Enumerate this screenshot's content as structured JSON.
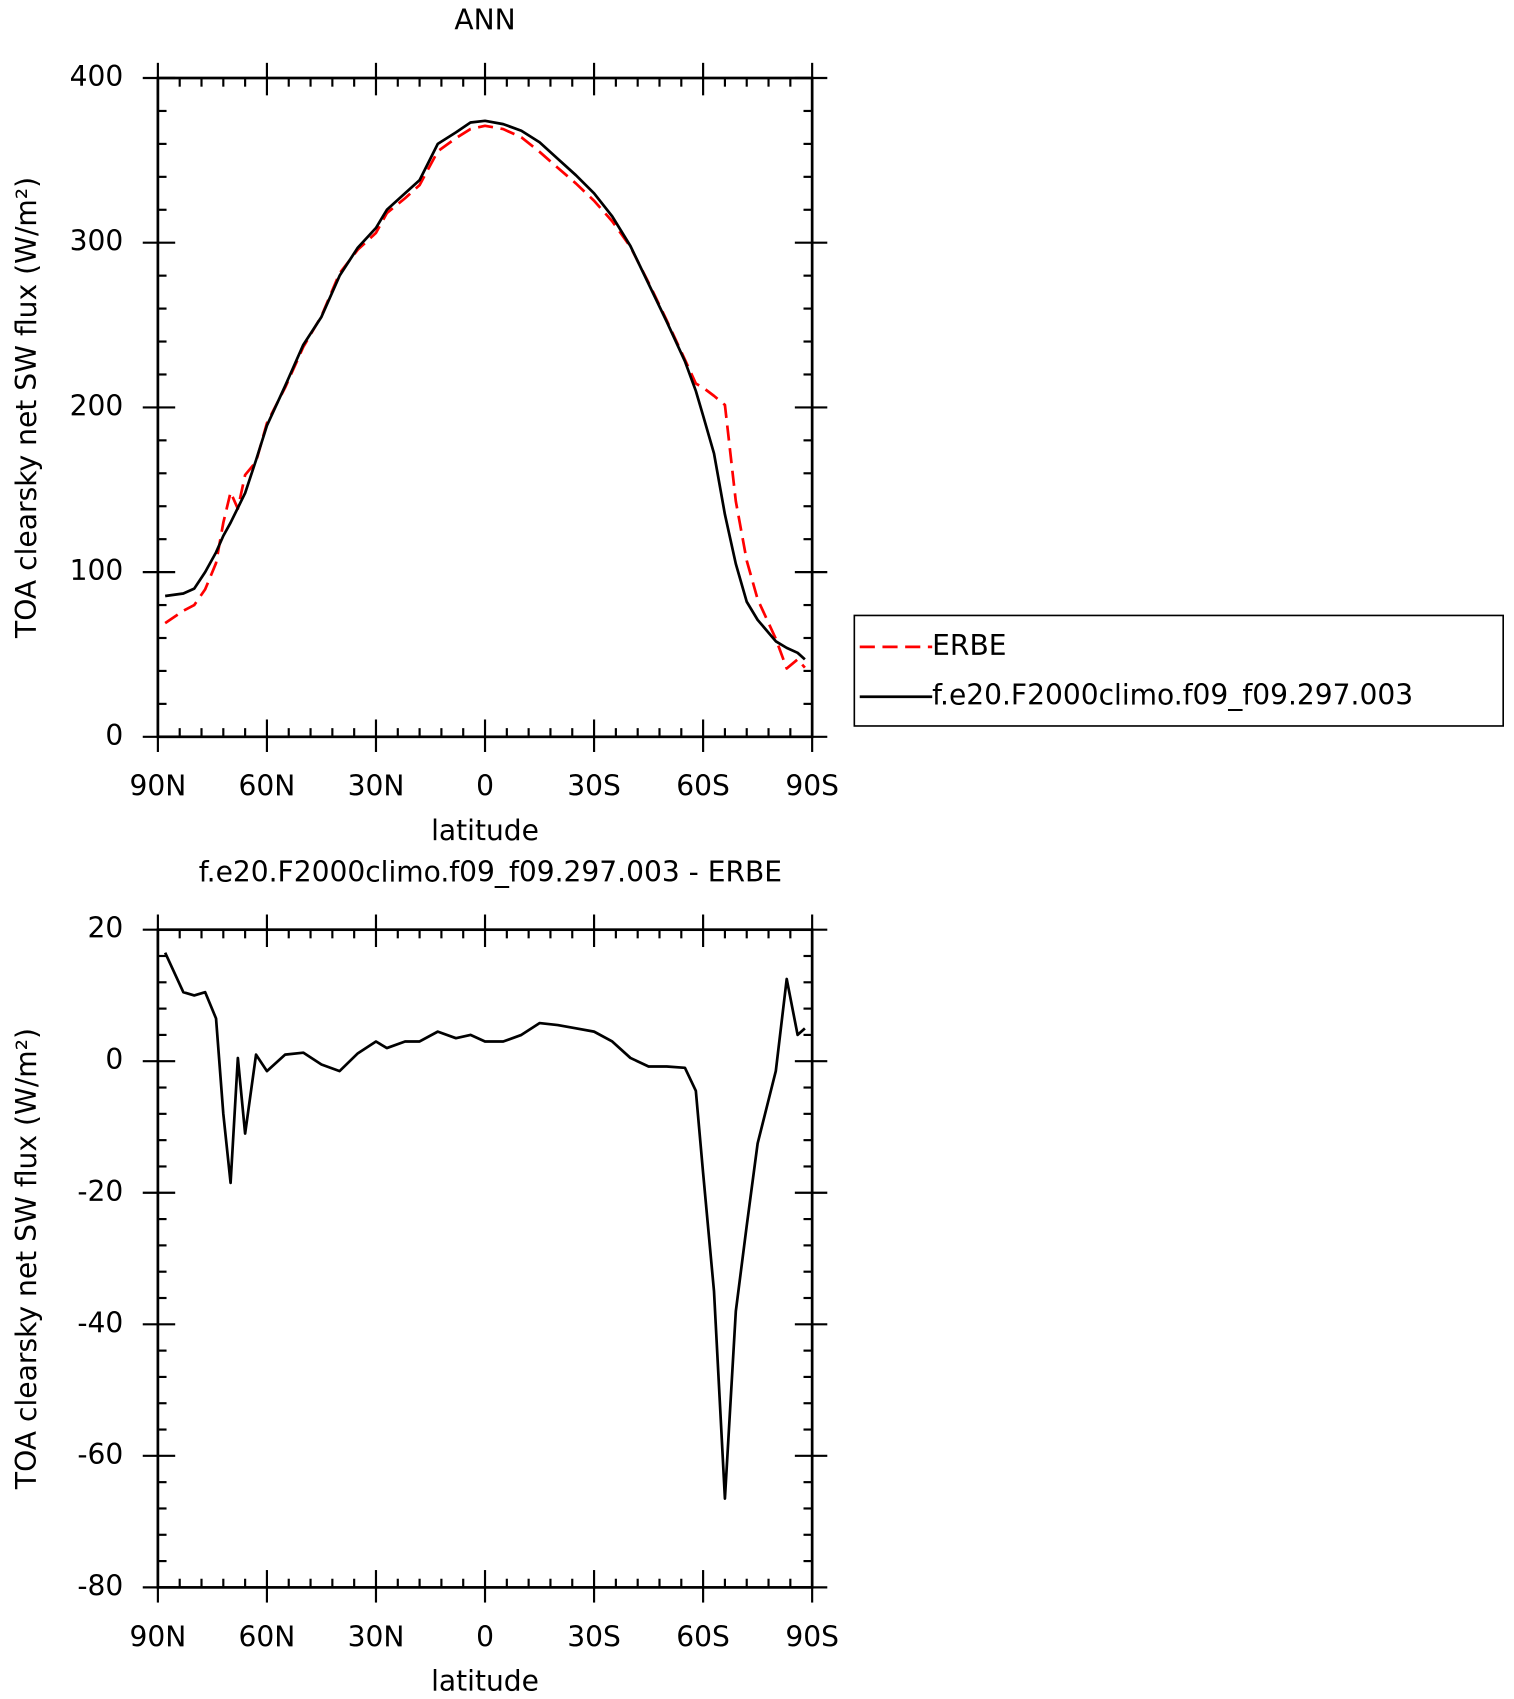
{
  "chart_data": [
    {
      "type": "line",
      "title": "ANN",
      "ylabel": "TOA clearsky net SW flux (W/m²)",
      "xlabel": "latitude",
      "x": [
        88,
        83,
        80,
        77,
        74,
        72,
        70,
        68,
        66,
        63,
        60,
        55,
        50,
        45,
        40,
        35,
        30,
        27,
        22,
        18,
        13,
        8,
        4,
        0,
        -5,
        -10,
        -15,
        -20,
        -25,
        -30,
        -35,
        -40,
        -45,
        -50,
        -55,
        -58,
        -60,
        -63,
        -66,
        -69,
        -72,
        -75,
        -80,
        -83,
        -86,
        -88
      ],
      "series": [
        {
          "name": "ERBE",
          "color": "#ff0000",
          "dash": true,
          "values": [
            69,
            76.5,
            80,
            89.5,
            105.5,
            130,
            148.5,
            138.5,
            159,
            167,
            190.5,
            212,
            236.7,
            255.5,
            281.5,
            295.8,
            306,
            318,
            327,
            335,
            355.5,
            363.5,
            369,
            371,
            369,
            364,
            355.2,
            345.5,
            336,
            325.5,
            313,
            297.5,
            275.8,
            252.8,
            229,
            214.5,
            212,
            207,
            201.5,
            143,
            107,
            83.5,
            59.5,
            41.5,
            47,
            42
          ]
        },
        {
          "name": "f.e20.F2000climo.f09_f09.297.003",
          "color": "#000000",
          "dash": false,
          "values": [
            85.5,
            87,
            90,
            100,
            112,
            122,
            130,
            139,
            148,
            168,
            189,
            213,
            238,
            255,
            280,
            297,
            309,
            320,
            330,
            338,
            360,
            367,
            373,
            374,
            372,
            368,
            361,
            351,
            341,
            330,
            316,
            298,
            275,
            252,
            228,
            210,
            195,
            172,
            135,
            105,
            82,
            71,
            58,
            54,
            51,
            47
          ]
        }
      ],
      "xlim": [
        90,
        -90
      ],
      "xticks": [
        {
          "value": 90,
          "label": "90N"
        },
        {
          "value": 60,
          "label": "60N"
        },
        {
          "value": 30,
          "label": "30N"
        },
        0,
        {
          "value": -30,
          "label": "30S"
        },
        {
          "value": -60,
          "label": "60S"
        },
        {
          "value": -90,
          "label": "90S"
        }
      ],
      "ylim": [
        0,
        400
      ],
      "yticks": [
        0,
        100,
        200,
        300,
        400
      ],
      "legend": "outside-right"
    },
    {
      "type": "line",
      "title": "f.e20.F2000climo.f09_f09.297.003 - ERBE",
      "ylabel": "TOA clearsky net SW flux (W/m²)",
      "xlabel": "latitude",
      "x": [
        88,
        83,
        80,
        77,
        74,
        72,
        70,
        68,
        66,
        63,
        60,
        55,
        50,
        45,
        40,
        35,
        30,
        27,
        22,
        18,
        13,
        8,
        4,
        0,
        -5,
        -10,
        -15,
        -20,
        -25,
        -30,
        -35,
        -40,
        -45,
        -50,
        -55,
        -58,
        -60,
        -63,
        -66,
        -69,
        -72,
        -75,
        -80,
        -83,
        -86,
        -88
      ],
      "series": [
        {
          "color": "#000000",
          "dash": false,
          "values": [
            16.5,
            10.5,
            10,
            10.5,
            6.5,
            -8,
            -18.5,
            0.5,
            -11,
            1,
            -1.5,
            1,
            1.3,
            -0.5,
            -1.5,
            1.2,
            3,
            2,
            3,
            3,
            4.5,
            3.5,
            4,
            3,
            3,
            4,
            5.8,
            5.5,
            5,
            4.5,
            3,
            0.5,
            -0.8,
            -0.8,
            -1,
            -4.5,
            -17,
            -35,
            -66.5,
            -38,
            -25,
            -12.5,
            -1.5,
            12.5,
            4,
            5
          ]
        }
      ],
      "xlim": [
        90,
        -90
      ],
      "xticks": [
        {
          "value": 90,
          "label": "90N"
        },
        {
          "value": 60,
          "label": "60N"
        },
        {
          "value": 30,
          "label": "30N"
        },
        0,
        {
          "value": -30,
          "label": "30S"
        },
        {
          "value": -60,
          "label": "60S"
        },
        {
          "value": -90,
          "label": "90S"
        }
      ],
      "ylim": [
        -80,
        20
      ],
      "yticks": [
        -80,
        -60,
        -40,
        -20,
        0,
        20
      ]
    }
  ]
}
